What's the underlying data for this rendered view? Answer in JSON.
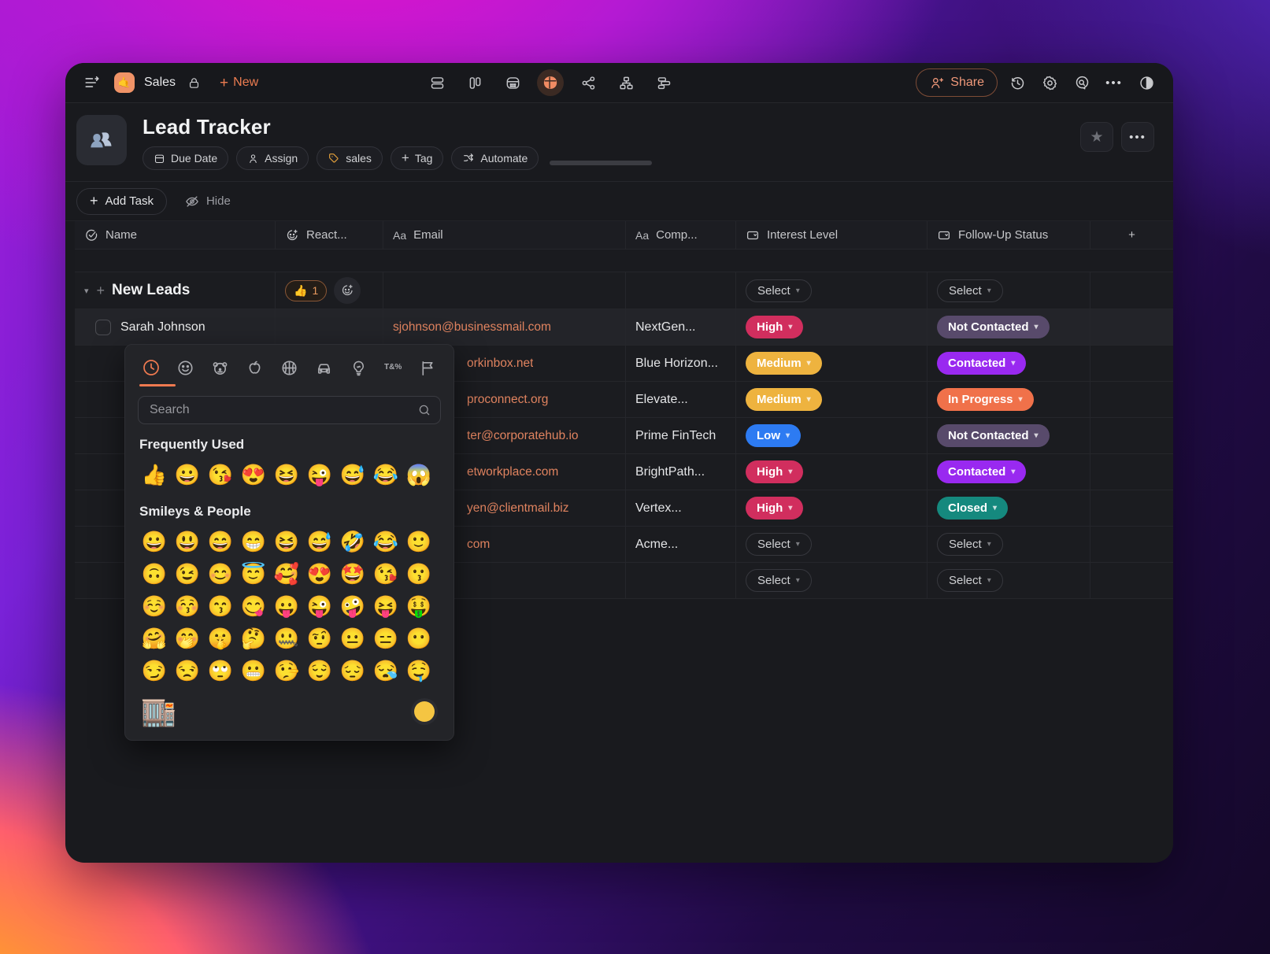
{
  "toolbar": {
    "workspace_label": "Sales",
    "workspace_avatar_emoji": "🤙",
    "new_label": "New",
    "share_label": "Share"
  },
  "header": {
    "title": "Lead Tracker",
    "doc_emoji": "👥",
    "pills": {
      "due_date": "Due Date",
      "assign": "Assign",
      "tag_sales": "sales",
      "add_tag": "Tag",
      "automate": "Automate"
    }
  },
  "actions": {
    "add_task": "Add Task",
    "hide": "Hide"
  },
  "icons": {
    "plus": "+",
    "caret_down": "▾",
    "more": "•••",
    "star": "★",
    "text_field": "Aa",
    "symbols_tab": "T&%"
  },
  "table": {
    "columns": {
      "name": "Name",
      "reactions": "React...",
      "email": "Email",
      "company": "Comp...",
      "interest": "Interest Level",
      "status": "Follow-Up Status"
    },
    "group": {
      "name": "New Leads",
      "reaction_emoji": "👍",
      "reaction_count": "1",
      "interest": "Select",
      "status": "Select"
    },
    "rows": [
      {
        "name": "Sarah Johnson",
        "email": "sjohnson@businessmail.com",
        "company": "NextGen...",
        "interest": "High",
        "status": "Not Contacted"
      },
      {
        "name": "",
        "email": "orkinbox.net",
        "company": "Blue Horizon...",
        "interest": "Medium",
        "status": "Contacted"
      },
      {
        "name": "",
        "email": "proconnect.org",
        "company": "Elevate...",
        "interest": "Medium",
        "status": "In Progress"
      },
      {
        "name": "",
        "email": "ter@corporatehub.io",
        "company": "Prime FinTech",
        "interest": "Low",
        "status": "Not Contacted"
      },
      {
        "name": "",
        "email": "etworkplace.com",
        "company": "BrightPath...",
        "interest": "High",
        "status": "Contacted"
      },
      {
        "name": "",
        "email": "yen@clientmail.biz",
        "company": "Vertex...",
        "interest": "High",
        "status": "Closed"
      },
      {
        "name": "",
        "email": "com",
        "company": "Acme...",
        "interest": "Select",
        "status": "Select"
      },
      {
        "name": "",
        "email": "",
        "company": "",
        "interest": "Select",
        "status": "Select"
      }
    ]
  },
  "colors": {
    "accent": "#ec7c50",
    "email": "#e0835f",
    "high": "#d12e5e",
    "medium": "#eeb33f",
    "low": "#2d7bf2",
    "not_contacted": "#584a6b",
    "contacted": "#9929f0",
    "in_progress": "#f0714a",
    "closed": "#15897e",
    "skin_tone": "#f5c542"
  },
  "emoji_picker": {
    "search_placeholder": "Search",
    "tabs": [
      "recent",
      "smileys",
      "animals",
      "food",
      "activities",
      "travel",
      "objects",
      "symbols",
      "flags"
    ],
    "sections": [
      {
        "title": "Frequently Used",
        "emojis": [
          "👍",
          "😀",
          "😘",
          "😍",
          "😆",
          "😜",
          "😅",
          "😂",
          "😱"
        ]
      },
      {
        "title": "Smileys & People",
        "emojis": [
          "😀",
          "😃",
          "😄",
          "😁",
          "😆",
          "😅",
          "🤣",
          "😂",
          "🙂",
          "🙃",
          "😉",
          "😊",
          "😇",
          "🥰",
          "😍",
          "🤩",
          "😘",
          "😗",
          "☺️",
          "😚",
          "😙",
          "😋",
          "😛",
          "😜",
          "🤪",
          "😝",
          "🤑",
          "🤗",
          "🤭",
          "🤫",
          "🤔",
          "🤐",
          "🤨",
          "😐",
          "😑",
          "😶",
          "😏",
          "😒",
          "🙄",
          "😬",
          "🤥",
          "😌",
          "😔",
          "😪",
          "🤤"
        ]
      }
    ],
    "preview_emoji": "🏬"
  }
}
